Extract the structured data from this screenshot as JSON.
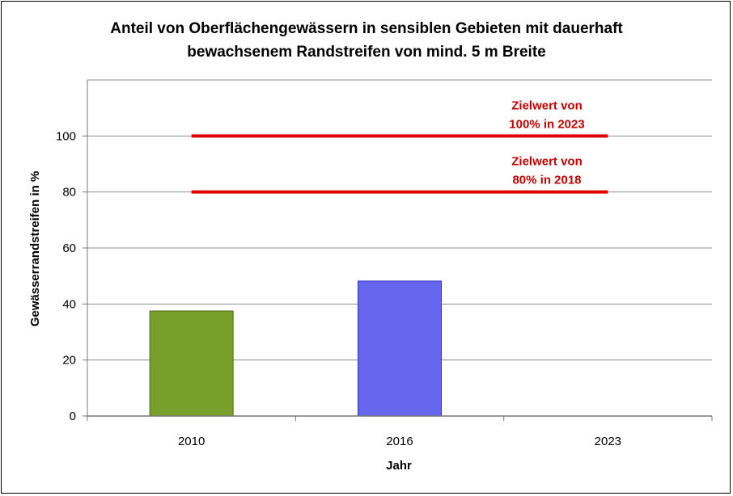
{
  "chart_data": {
    "type": "bar",
    "title_lines": [
      "Anteil von Oberflächengewässern in sensiblen Gebieten mit dauerhaft",
      "bewachsenem Randstreifen von mind. 5 m Breite"
    ],
    "xlabel": "Jahr",
    "ylabel": "Gewässerrandstreifen in %",
    "categories": [
      "2010",
      "2016",
      "2023"
    ],
    "values": [
      37.5,
      48.2,
      null
    ],
    "bar_colors": [
      "#76a02a",
      "#6666ee",
      null
    ],
    "ylim": [
      0,
      120
    ],
    "yticks": [
      0,
      20,
      40,
      60,
      80,
      100
    ],
    "grid": true,
    "target_lines": [
      {
        "value": 100,
        "from_category": "2010",
        "to_category": "2023",
        "label_lines": [
          "Zielwert von",
          "100% in 2023"
        ],
        "color": "#e00000"
      },
      {
        "value": 80,
        "from_category": "2010",
        "to_category": "2023",
        "label_lines": [
          "Zielwert von",
          "80% in 2018"
        ],
        "color": "#e00000"
      }
    ]
  }
}
